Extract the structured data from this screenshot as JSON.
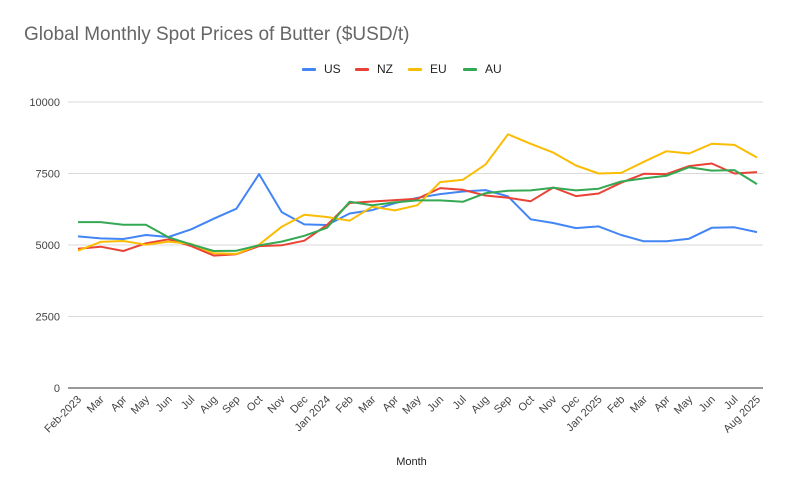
{
  "chart_data": {
    "type": "line",
    "title": "Global Monthly Spot Prices of Butter ($USD/t)",
    "xlabel": "Month",
    "ylabel": "",
    "ylim": [
      0,
      10000
    ],
    "yticks": [
      0,
      2500,
      5000,
      7500,
      10000
    ],
    "grid": true,
    "legend_position": "top-center",
    "categories": [
      "Feb-2023",
      "Mar",
      "Apr",
      "May",
      "Jun",
      "Jul",
      "Aug",
      "Sep",
      "Oct",
      "Nov",
      "Dec",
      "Jan 2024",
      "Feb",
      "Mar",
      "Apr",
      "May",
      "Jun",
      "Jul",
      "Aug",
      "Sep",
      "Oct",
      "Nov",
      "Dec",
      "Jan 2025",
      "Feb",
      "Mar",
      "Apr",
      "May",
      "Jun",
      "Jul",
      "Aug 2025"
    ],
    "series": [
      {
        "name": "US",
        "color": "#4285f4",
        "values": [
          5300,
          5230,
          5210,
          5350,
          5280,
          5550,
          5920,
          6270,
          7480,
          6150,
          5720,
          5700,
          6100,
          6220,
          6460,
          6650,
          6780,
          6870,
          6920,
          6700,
          5900,
          5770,
          5590,
          5650,
          5350,
          5130,
          5130,
          5220,
          5600,
          5620,
          5450
        ]
      },
      {
        "name": "NZ",
        "color": "#ea4335",
        "values": [
          4870,
          4940,
          4790,
          5060,
          5200,
          4960,
          4630,
          4680,
          4960,
          4990,
          5150,
          5700,
          6470,
          6520,
          6570,
          6620,
          6990,
          6930,
          6730,
          6650,
          6530,
          7010,
          6710,
          6800,
          7180,
          7490,
          7480,
          7760,
          7850,
          7500,
          7550
        ]
      },
      {
        "name": "EU",
        "color": "#fbbc04",
        "values": [
          4800,
          5110,
          5140,
          5010,
          5120,
          5040,
          4710,
          4690,
          5010,
          5640,
          6060,
          5980,
          5850,
          6340,
          6210,
          6390,
          7200,
          7280,
          7810,
          8870,
          8540,
          8230,
          7780,
          7500,
          7520,
          7910,
          8280,
          8200,
          8540,
          8500,
          8060
        ]
      },
      {
        "name": "AU",
        "color": "#34a853",
        "values": [
          5800,
          5800,
          5710,
          5710,
          5270,
          5020,
          4790,
          4800,
          4990,
          5120,
          5320,
          5600,
          6510,
          6390,
          6490,
          6560,
          6560,
          6510,
          6810,
          6900,
          6910,
          7000,
          6910,
          6970,
          7220,
          7330,
          7420,
          7720,
          7600,
          7620,
          7130
        ]
      }
    ]
  }
}
